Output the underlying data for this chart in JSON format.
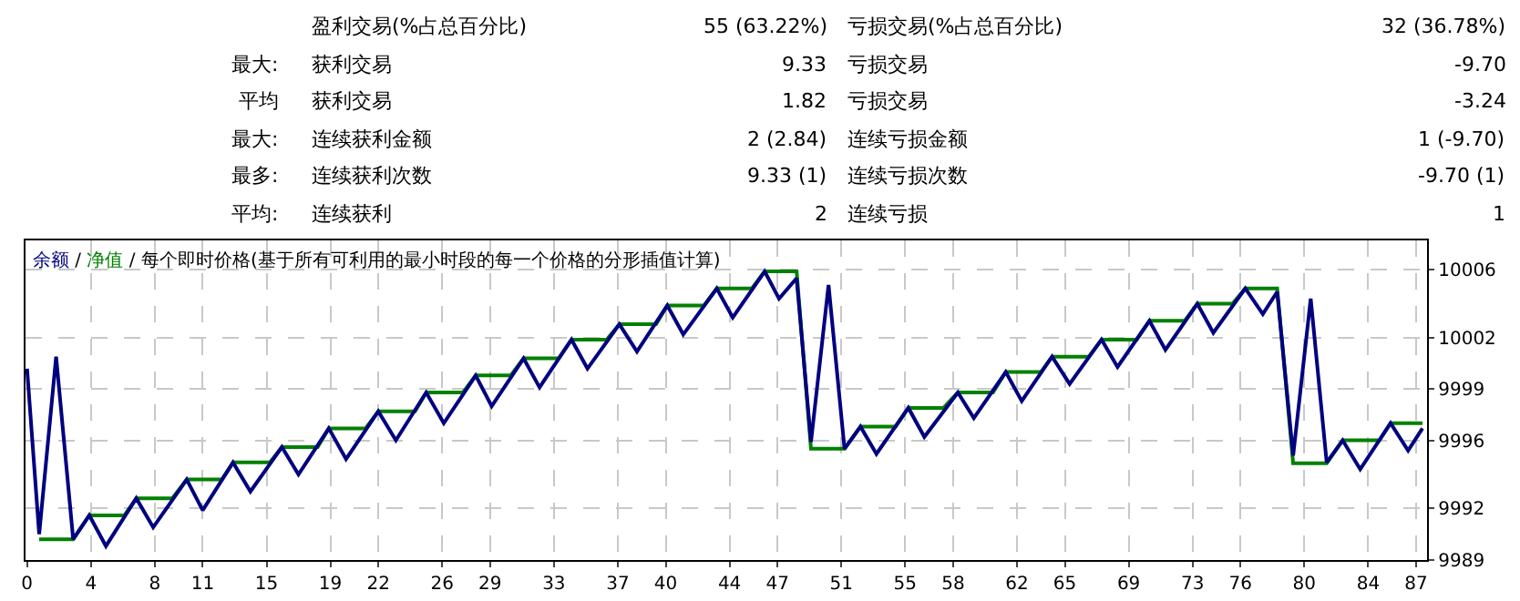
{
  "chart_data": [
    {
      "type": "other",
      "annotations": [
        "盈利交易(%占总百分比)",
        "55 (63.22%)",
        "亏损交易(%占总百分比)",
        "32 (36.78%)",
        "最大:",
        "获利交易",
        "9.33",
        "亏损交易",
        "-9.70",
        "平均",
        "获利交易",
        "1.82",
        "亏损交易",
        "-3.24",
        "最大:",
        "连续获利金额",
        "2 (2.84)",
        "连续亏损金额",
        "1 (-9.70)",
        "最多:",
        "连续获利次数",
        "9.33 (1)",
        "连续亏损次数",
        "-9.70 (1)",
        "平均:",
        "连续获利",
        "2",
        "连续亏损",
        "1"
      ]
    },
    {
      "type": "line",
      "annotations": [
        "/",
        "/ 每个即时价格(基于所有可利用的最小时段的每一个价格的分形插值计算)"
      ],
      "grid": true,
      "legend": "top left",
      "line_style": "solid",
      "marker": "none",
      "xlim": [
        -0.1,
        87.7
      ],
      "ylim": [
        9989,
        10007.7
      ],
      "xticks": [
        0,
        4,
        8,
        11,
        15,
        19,
        22,
        26,
        29,
        33,
        37,
        40,
        44,
        47,
        51,
        55,
        58,
        62,
        65,
        69,
        73,
        76,
        80,
        84,
        87
      ],
      "yticks": [
        9989,
        9992,
        9996,
        9999,
        10002,
        10006
      ],
      "series": [
        {
          "name": "净值",
          "color": "#008000",
          "x": [
            0.76,
            2.89,
            3.9,
            6.1,
            6.84,
            9.1,
            10.0,
            12.2,
            12.9,
            15.2,
            15.96,
            18.2,
            18.9,
            21.2,
            22.0,
            24.3,
            25.0,
            27.3,
            28.1,
            30.3,
            31.1,
            33.3,
            34.1,
            36.3,
            37.1,
            39.4,
            40.1,
            42.4,
            43.2,
            45.4,
            46.2,
            48.2,
            49.1,
            51.2,
            52.2,
            54.4,
            55.2,
            57.4,
            58.3,
            60.5,
            61.3,
            63.5,
            64.2,
            66.5,
            67.3,
            69.5,
            70.3,
            72.5,
            73.3,
            75.5,
            76.3,
            78.3,
            79.3,
            81.4,
            82.4,
            84.7,
            85.4,
            87.4
          ],
          "values": [
            9990.2,
            9990.2,
            9991.6,
            9991.6,
            9992.6,
            9992.6,
            9993.7,
            9993.7,
            9994.7,
            9994.7,
            9995.6,
            9995.6,
            9996.7,
            9996.7,
            9997.7,
            9997.7,
            9998.8,
            9998.8,
            9999.8,
            9999.8,
            10000.8,
            10000.8,
            10001.9,
            10001.9,
            10002.8,
            10002.8,
            10003.9,
            10003.9,
            10004.9,
            10004.9,
            10005.9,
            10005.9,
            9995.5,
            9995.5,
            9996.8,
            9996.8,
            9997.9,
            9997.9,
            9998.8,
            9998.8,
            10000.0,
            10000.0,
            10000.9,
            10000.9,
            10001.9,
            10001.9,
            10003.0,
            10003.0,
            10004.0,
            10004.0,
            10004.9,
            10004.9,
            9994.65,
            9994.65,
            9996.0,
            9996.0,
            9997.0,
            9997.0
          ]
        },
        {
          "name": "余额",
          "color": "#000080",
          "x": [
            0,
            0.76,
            1.82,
            2.89,
            3.9,
            4.94,
            6.84,
            7.9,
            10.0,
            11.0,
            12.9,
            13.99,
            15.96,
            17.0,
            18.9,
            19.98,
            22.0,
            23.1,
            25.0,
            26.1,
            28.1,
            29.1,
            31.1,
            32.1,
            34.1,
            35.1,
            37.1,
            38.2,
            40.1,
            41.1,
            43.2,
            44.2,
            46.2,
            47.1,
            48.2,
            49.1,
            50.2,
            51.2,
            52.2,
            53.2,
            55.2,
            56.2,
            58.3,
            59.3,
            61.3,
            62.3,
            64.2,
            65.3,
            67.3,
            68.3,
            70.3,
            71.3,
            73.3,
            74.3,
            76.3,
            77.4,
            78.3,
            79.3,
            80.4,
            81.4,
            82.4,
            83.5,
            85.4,
            86.5,
            87.4
          ],
          "values": [
            10000.2,
            9990.5,
            10000.9,
            9990.2,
            9991.6,
            9989.8,
            9992.6,
            9990.9,
            9993.7,
            9991.9,
            9994.7,
            9993.0,
            9995.6,
            9994.0,
            9996.7,
            9994.9,
            9997.7,
            9996.0,
            9998.8,
            9997.0,
            9999.8,
            9998.0,
            10000.8,
            9999.1,
            10001.9,
            10000.2,
            10002.8,
            10001.2,
            10003.9,
            10002.2,
            10004.9,
            10003.2,
            10005.9,
            10004.3,
            10005.5,
            9995.9,
            10005.1,
            9995.5,
            9996.8,
            9995.2,
            9997.9,
            9996.2,
            9998.8,
            9997.3,
            10000.0,
            9998.3,
            10000.9,
            9999.3,
            10001.9,
            10000.3,
            10003.0,
            10001.3,
            10004.0,
            10002.3,
            10004.9,
            10003.4,
            10004.7,
            9995.1,
            10004.3,
            9994.7,
            9996.0,
            9994.3,
            9997.0,
            9995.4,
            9996.7
          ]
        }
      ]
    }
  ]
}
